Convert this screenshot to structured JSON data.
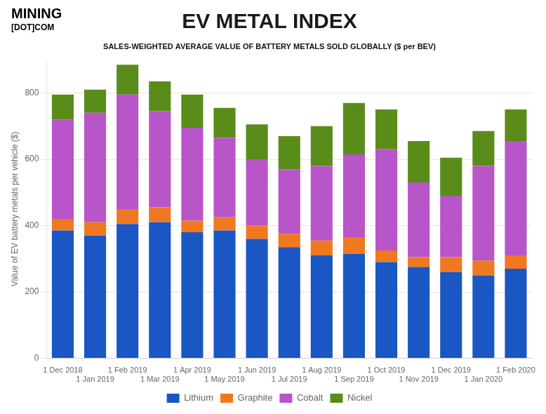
{
  "chart_data": {
    "type": "bar",
    "stacked": true,
    "title": "EV METAL INDEX",
    "subtitle": "SALES-WEIGHTED AVERAGE VALUE OF BATTERY METALS SOLD GLOBALLY ($ per BEV)",
    "annotations": [
      "MINING",
      "[DOT]COM"
    ],
    "y_label": "Value of EV battery metals per vehicle ($)",
    "categories": [
      "1 Dec 2018",
      "1 Jan 2019",
      "1 Feb 2019",
      "1 Mar 2019",
      "1 Apr 2019",
      "1 May 2019",
      "1 Jun 2019",
      "1 Jul 2019",
      "1 Aug 2019",
      "1 Sep 2019",
      "1 Oct 2019",
      "1 Nov 2019",
      "1 Dec 2019",
      "1 Jan 2020",
      "1 Feb 2020"
    ],
    "series": [
      {
        "name": "Lithium",
        "color": "#1a56c4",
        "values": [
          385,
          370,
          405,
          410,
          380,
          385,
          360,
          335,
          310,
          315,
          290,
          275,
          260,
          250,
          270
        ]
      },
      {
        "name": "Graphite",
        "color": "#f07820",
        "values": [
          35,
          40,
          45,
          45,
          35,
          40,
          40,
          40,
          45,
          50,
          35,
          30,
          45,
          45,
          40
        ]
      },
      {
        "name": "Cobalt",
        "color": "#b855c8",
        "values": [
          300,
          330,
          345,
          290,
          280,
          240,
          200,
          195,
          225,
          250,
          305,
          225,
          185,
          285,
          345
        ]
      },
      {
        "name": "Nickel",
        "color": "#5a8c1a",
        "values": [
          75,
          70,
          90,
          90,
          100,
          90,
          105,
          100,
          120,
          155,
          120,
          125,
          115,
          105,
          95
        ]
      }
    ],
    "ylim": [
      0,
      900
    ],
    "yticks": [
      0,
      200,
      400,
      600,
      800
    ],
    "grid": true,
    "legend": "bottom"
  }
}
